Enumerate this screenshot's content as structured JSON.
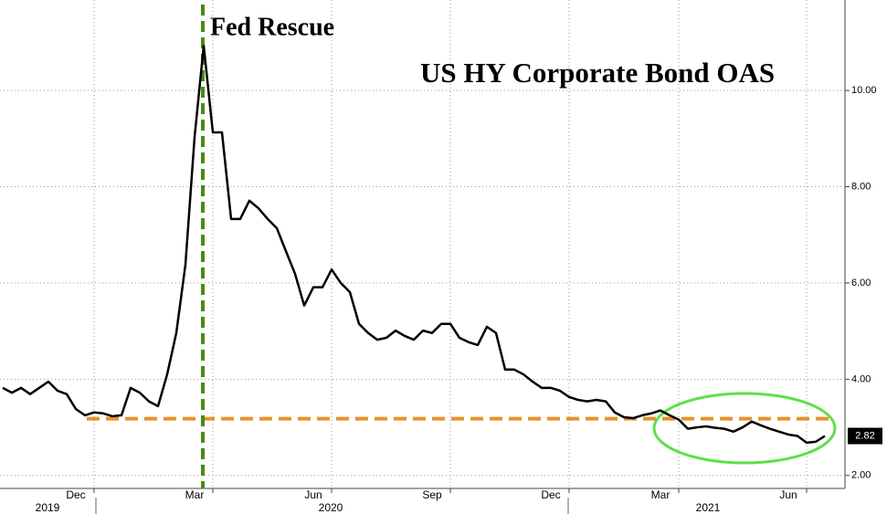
{
  "chart_data": {
    "type": "line",
    "title": "US HY Corporate Bond OAS",
    "annotation": "Fed Rescue",
    "annotation_color": "#4a8a10",
    "color": "#000000",
    "categories": [
      null,
      null,
      null,
      null,
      null,
      null,
      null,
      null,
      "Dec",
      null,
      null,
      null,
      null,
      null,
      null,
      null,
      null,
      null,
      null,
      null,
      null,
      "Mar",
      null,
      null,
      null,
      null,
      null,
      null,
      null,
      null,
      null,
      null,
      null,
      null,
      "Jun",
      null,
      null,
      null,
      null,
      null,
      null,
      null,
      null,
      null,
      null,
      null,
      null,
      "Sep",
      null,
      null,
      null,
      null,
      null,
      null,
      null,
      null,
      null,
      null,
      null,
      null,
      "Dec",
      null,
      null,
      null,
      null,
      null,
      null,
      null,
      null,
      null,
      null,
      null,
      "Mar",
      null,
      null,
      null,
      null,
      null,
      null,
      null,
      null,
      null,
      null,
      null,
      null,
      null,
      "Jun",
      null,
      null,
      null,
      null
    ],
    "values": [
      3.82,
      3.72,
      3.82,
      3.69,
      3.82,
      3.95,
      3.76,
      3.69,
      3.38,
      3.25,
      3.31,
      3.29,
      3.23,
      3.25,
      3.82,
      3.72,
      3.54,
      3.44,
      4.1,
      4.96,
      6.38,
      9.03,
      10.93,
      9.13,
      9.13,
      7.33,
      7.33,
      7.71,
      7.55,
      7.33,
      7.14,
      6.66,
      6.19,
      5.53,
      5.91,
      5.91,
      6.28,
      6.0,
      5.81,
      5.15,
      4.96,
      4.82,
      4.86,
      5.01,
      4.9,
      4.82,
      5.01,
      4.96,
      5.15,
      5.15,
      4.86,
      4.77,
      4.71,
      5.09,
      4.96,
      4.2,
      4.2,
      4.1,
      3.95,
      3.82,
      3.82,
      3.76,
      3.63,
      3.57,
      3.54,
      3.57,
      3.54,
      3.31,
      3.21,
      3.19,
      3.25,
      3.29,
      3.35,
      3.25,
      3.16,
      2.97,
      3.0,
      3.02,
      2.99,
      2.97,
      2.91,
      3.0,
      3.12,
      3.04,
      2.97,
      2.91,
      2.85,
      2.82,
      2.68,
      2.7,
      2.82
    ],
    "year_labels": [
      "2019",
      "2020",
      "2021"
    ],
    "reference_level": 3.18,
    "reference_color": "#e8922a",
    "ylim": [
      1.73,
      11.88
    ],
    "yticks": [
      {
        "value": 2,
        "label": "2.00"
      },
      {
        "value": 4,
        "label": "4.00"
      },
      {
        "value": 6,
        "label": "6.00"
      },
      {
        "value": 8,
        "label": "8.00"
      },
      {
        "value": 10,
        "label": "10.00"
      }
    ],
    "grid": true
  }
}
